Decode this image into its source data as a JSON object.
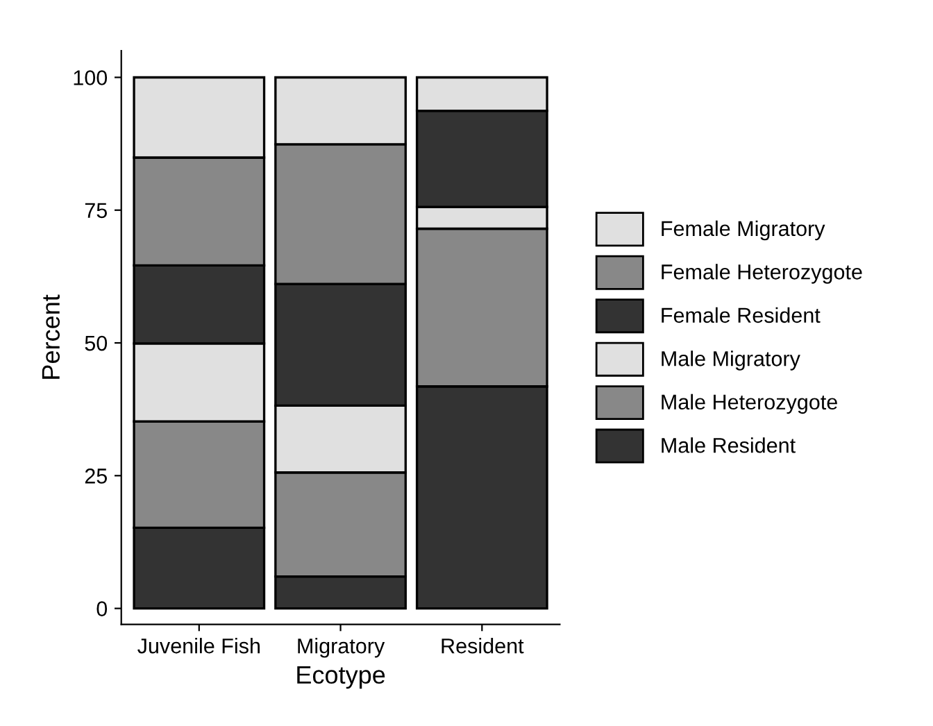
{
  "chart_data": {
    "type": "bar",
    "stacked": true,
    "xlabel": "Ecotype",
    "ylabel": "Percent",
    "categories": [
      "Juvenile Fish",
      "Migratory",
      "Resident"
    ],
    "ylim": [
      -3,
      105
    ],
    "yticks": [
      0,
      25,
      50,
      75,
      100
    ],
    "grid": false,
    "legend": "right",
    "series": [
      {
        "name": "Male Resident",
        "color": "#333333",
        "values": [
          15.2,
          6.0,
          41.8
        ]
      },
      {
        "name": "Male Heterozygote",
        "color": "#888888",
        "values": [
          20.0,
          19.6,
          29.7
        ]
      },
      {
        "name": "Male Migratory",
        "color": "#e0e0e0",
        "values": [
          14.7,
          12.6,
          4.1
        ]
      },
      {
        "name": "Female Resident",
        "color": "#333333",
        "values": [
          14.7,
          22.9,
          18.1
        ]
      },
      {
        "name": "Female Heterozygote",
        "color": "#888888",
        "values": [
          20.3,
          26.3,
          0
        ]
      },
      {
        "name": "Female Migratory",
        "color": "#e0e0e0",
        "values": [
          15.1,
          12.6,
          6.3
        ]
      }
    ]
  }
}
